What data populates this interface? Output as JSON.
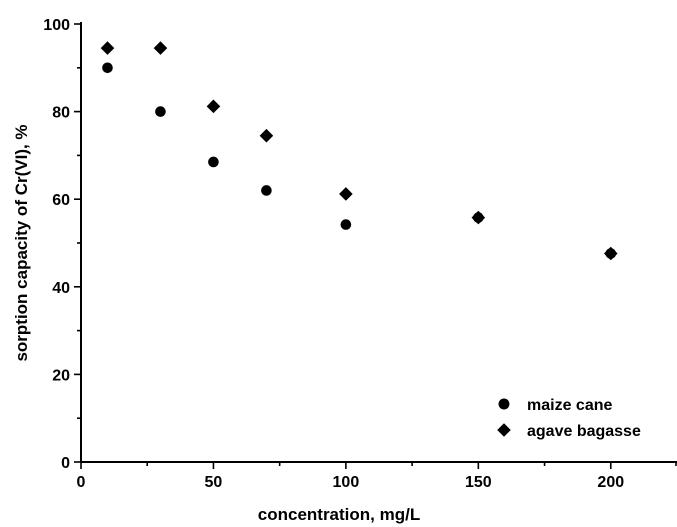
{
  "chart_data": {
    "type": "scatter",
    "xlabel": "concentration, mg/L",
    "ylabel": "sorption capacity of Cr(VI), %",
    "xlim": [
      0,
      225
    ],
    "ylim": [
      0,
      100
    ],
    "x_ticks": [
      0,
      50,
      100,
      150,
      200
    ],
    "y_ticks": [
      0,
      20,
      40,
      60,
      80,
      100
    ],
    "grid": false,
    "legend_position": "bottom-right",
    "series": [
      {
        "name": "maize cane",
        "marker": "circle",
        "color": "#000000",
        "points": [
          [
            10,
            90
          ],
          [
            30,
            80
          ],
          [
            50,
            68.5
          ],
          [
            70,
            62
          ],
          [
            100,
            54.2
          ],
          [
            150,
            55.8
          ],
          [
            200,
            47.6
          ]
        ]
      },
      {
        "name": "agave bagasse",
        "marker": "diamond",
        "color": "#000000",
        "points": [
          [
            10,
            94.5
          ],
          [
            30,
            94.5
          ],
          [
            50,
            81.2
          ],
          [
            70,
            74.5
          ],
          [
            100,
            61.2
          ],
          [
            150,
            55.8
          ],
          [
            200,
            47.6
          ]
        ]
      }
    ]
  }
}
